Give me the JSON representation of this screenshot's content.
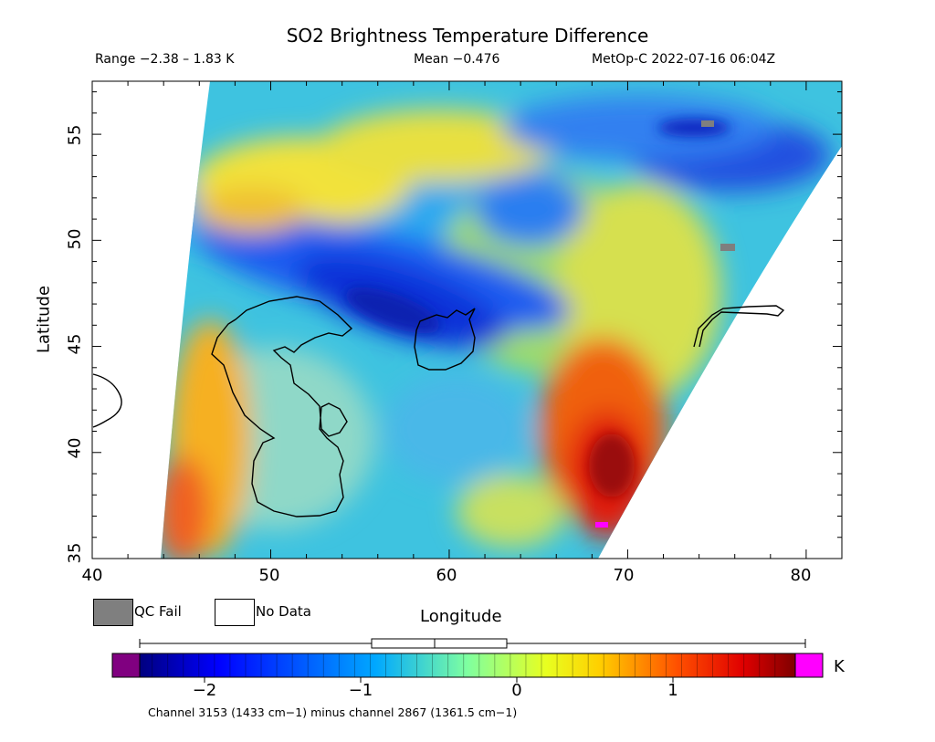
{
  "title": "SO2 Brightness Temperature Difference",
  "subtitle": {
    "range": "Range −2.38 – 1.83 K",
    "mean": "Mean −0.476",
    "satellite": "MetOp-C 2022-07-16 06:04Z"
  },
  "axes": {
    "xlabel": "Longitude",
    "ylabel": "Latitude",
    "xticks": [
      "40",
      "50",
      "60",
      "70",
      "80"
    ],
    "yticks": [
      "35",
      "40",
      "45",
      "50",
      "55"
    ]
  },
  "legend": {
    "qc_fail": "QC Fail",
    "no_data": "No Data",
    "qc_color": "#7f7f7f",
    "no_data_color": "#ffffff"
  },
  "colorbar": {
    "unit": "K",
    "ticks": [
      "−2",
      "−1",
      "0",
      "1"
    ],
    "range": [
      -2.38,
      1.83
    ],
    "low_color": "#800080",
    "high_color": "#ff00ff",
    "boxplot": {
      "min": -2.38,
      "q1": -0.95,
      "median": -0.52,
      "q3": -0.05,
      "max": 1.83
    }
  },
  "footnote": "Channel 3153 (1433 cm−1) minus channel 2867 (1361.5 cm−1)",
  "chart_data": {
    "type": "heatmap",
    "title": "SO2 Brightness Temperature Difference",
    "xlabel": "Longitude",
    "ylabel": "Latitude",
    "xlim": [
      40,
      82
    ],
    "ylim": [
      35,
      57.5
    ],
    "value_range": [
      -2.38,
      1.83
    ],
    "mean": -0.476,
    "units": "K",
    "features": [
      {
        "name": "negative band",
        "lon": [
          47,
          60
        ],
        "lat": [
          45,
          50
        ],
        "approx_value": -2.0
      },
      {
        "name": "positive region",
        "lon": [
          66,
          71
        ],
        "lat": [
          35,
          43
        ],
        "approx_value": 1.4
      },
      {
        "name": "western edge positive",
        "lon": [
          44,
          47
        ],
        "lat": [
          35,
          42
        ],
        "approx_value": 0.9
      }
    ]
  }
}
